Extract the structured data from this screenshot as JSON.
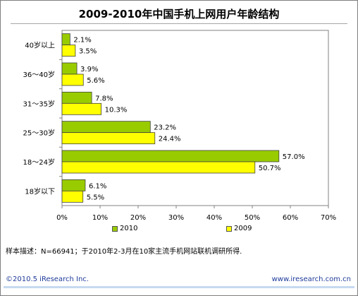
{
  "title": "2009-2010年中国手机上网用户年龄结构",
  "note": "样本描述：N=66941；于2010年2-3月在10家主流手机网站联机调研所得.",
  "footer": {
    "copyright": "©2010.5 iResearch Inc.",
    "site": "www.iresearch.com.cn"
  },
  "colors": {
    "2010": "#99cc00",
    "2009": "#ffff00",
    "border": "#404040"
  },
  "chart_data": {
    "type": "bar",
    "orientation": "horizontal",
    "categories": [
      "40岁以上",
      "36～40岁",
      "31～35岁",
      "25～30岁",
      "18～24岁",
      "18岁以下"
    ],
    "series": [
      {
        "name": "2010",
        "values": [
          2.1,
          3.9,
          7.8,
          23.2,
          57.0,
          6.1
        ]
      },
      {
        "name": "2009",
        "values": [
          3.5,
          5.6,
          10.3,
          24.4,
          50.7,
          5.5
        ]
      }
    ],
    "xlim": [
      0,
      70
    ],
    "xticks": [
      "0%",
      "10%",
      "20%",
      "30%",
      "40%",
      "50%",
      "60%",
      "70%"
    ],
    "legend_position": "bottom",
    "grid": false
  }
}
